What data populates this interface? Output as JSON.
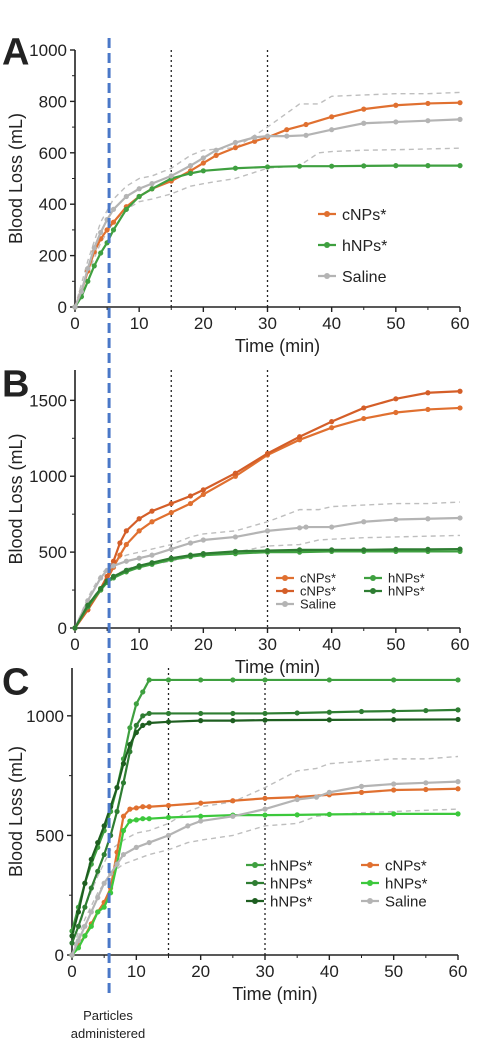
{
  "annotation": "Particles\nadministered",
  "colors": {
    "cnps": "#E07030",
    "cnps2": "#D45E28",
    "hnps": "#3FA040",
    "hnps_mid": "#2E7D32",
    "hnps_dark": "#1E5E20",
    "hnps_light": "#3CC83C",
    "saline": "#B4B4B4",
    "band": "#BEBEBE",
    "admin_line": "#4A78C8",
    "ref_line": "#222222"
  },
  "chart_data": [
    {
      "panel": "A",
      "type": "line",
      "xlabel": "Time (min)",
      "ylabel": "Blood Loss  (mL)",
      "xlim": [
        0,
        60
      ],
      "ylim": [
        0,
        1000
      ],
      "xticks": [
        0,
        10,
        20,
        30,
        40,
        50,
        60
      ],
      "yticks": [
        0,
        200,
        400,
        600,
        800,
        1000
      ],
      "ref_lines_x": [
        15,
        30
      ],
      "admin_x": 5,
      "legend_position": "right",
      "legend_layout": "one-column",
      "series": [
        {
          "name": "cNPs*",
          "color": "cnps",
          "x": [
            0,
            1,
            2,
            3,
            4,
            5,
            6,
            8,
            10,
            12,
            15,
            18,
            20,
            22,
            25,
            28,
            30,
            33,
            36,
            40,
            45,
            50,
            55,
            60
          ],
          "y": [
            0,
            60,
            140,
            215,
            265,
            300,
            330,
            390,
            430,
            460,
            490,
            530,
            560,
            590,
            620,
            645,
            660,
            690,
            710,
            740,
            770,
            785,
            792,
            795
          ]
        },
        {
          "name": "hNPs*",
          "color": "hnps",
          "x": [
            0,
            1,
            2,
            3,
            4,
            5,
            6,
            8,
            10,
            12,
            15,
            18,
            20,
            25,
            30,
            35,
            40,
            45,
            50,
            55,
            60
          ],
          "y": [
            0,
            40,
            100,
            160,
            210,
            250,
            300,
            380,
            430,
            460,
            500,
            520,
            530,
            540,
            545,
            548,
            548,
            549,
            550,
            550,
            550
          ]
        },
        {
          "name": "Saline",
          "color": "saline",
          "x": [
            0,
            1,
            2,
            3,
            4,
            5,
            6,
            8,
            10,
            12,
            15,
            18,
            20,
            22,
            25,
            28,
            30,
            33,
            36,
            40,
            45,
            50,
            55,
            60
          ],
          "y": [
            0,
            60,
            150,
            230,
            290,
            340,
            380,
            430,
            460,
            480,
            510,
            550,
            580,
            610,
            640,
            660,
            665,
            665,
            668,
            690,
            715,
            720,
            725,
            730
          ]
        }
      ],
      "bands": [
        {
          "x": [
            0,
            2,
            4,
            6,
            8,
            10,
            12,
            15,
            18,
            20,
            25,
            30,
            35,
            38,
            40,
            45,
            50,
            55,
            60
          ],
          "y": [
            0,
            180,
            330,
            420,
            470,
            500,
            510,
            540,
            590,
            610,
            620,
            700,
            790,
            790,
            820,
            825,
            830,
            830,
            835
          ]
        },
        {
          "x": [
            0,
            2,
            4,
            6,
            8,
            10,
            12,
            15,
            18,
            20,
            25,
            30,
            35,
            38,
            40,
            45,
            50,
            55,
            60
          ],
          "y": [
            0,
            130,
            250,
            330,
            380,
            410,
            420,
            440,
            470,
            480,
            500,
            540,
            550,
            600,
            605,
            610,
            612,
            615,
            618
          ]
        }
      ]
    },
    {
      "panel": "B",
      "type": "line",
      "xlabel": "Time (min)",
      "ylabel": "Blood Loss  (mL)",
      "xlim": [
        0,
        60
      ],
      "ylim": [
        0,
        1700
      ],
      "xticks": [
        0,
        10,
        20,
        30,
        40,
        50,
        60
      ],
      "yticks": [
        0,
        500,
        1000,
        1500
      ],
      "ref_lines_x": [
        15,
        30
      ],
      "admin_x": 5,
      "legend_position": "bottom-right",
      "legend_layout": "two-column",
      "series": [
        {
          "name": "cNPs*",
          "color": "cnps",
          "x": [
            0,
            2,
            4,
            5,
            6,
            7,
            8,
            10,
            12,
            15,
            18,
            20,
            25,
            30,
            35,
            40,
            45,
            50,
            55,
            60
          ],
          "y": [
            0,
            120,
            250,
            320,
            400,
            480,
            550,
            640,
            700,
            760,
            820,
            880,
            1000,
            1140,
            1240,
            1320,
            1380,
            1420,
            1440,
            1450
          ]
        },
        {
          "name": "cNPs*",
          "color": "cnps2",
          "x": [
            0,
            2,
            4,
            5,
            6,
            7,
            8,
            10,
            12,
            15,
            18,
            20,
            25,
            30,
            35,
            40,
            45,
            50,
            55,
            60
          ],
          "y": [
            0,
            120,
            260,
            340,
            440,
            560,
            640,
            720,
            770,
            820,
            870,
            910,
            1020,
            1150,
            1260,
            1360,
            1450,
            1510,
            1550,
            1560
          ]
        },
        {
          "name": "Saline",
          "color": "saline",
          "x": [
            0,
            2,
            4,
            5,
            6,
            8,
            10,
            12,
            15,
            18,
            20,
            25,
            30,
            35,
            36,
            40,
            45,
            50,
            55,
            60
          ],
          "y": [
            0,
            180,
            330,
            380,
            410,
            440,
            460,
            480,
            520,
            560,
            580,
            600,
            640,
            660,
            665,
            665,
            700,
            715,
            720,
            725
          ]
        },
        {
          "name": "hNPs*",
          "color": "hnps",
          "x": [
            0,
            2,
            4,
            5,
            6,
            8,
            10,
            12,
            15,
            18,
            20,
            25,
            30,
            35,
            40,
            45,
            50,
            55,
            60
          ],
          "y": [
            0,
            140,
            250,
            300,
            330,
            370,
            400,
            420,
            450,
            470,
            480,
            490,
            500,
            500,
            505,
            505,
            505,
            505,
            505
          ]
        },
        {
          "name": "hNPs*",
          "color": "hnps_mid",
          "x": [
            0,
            2,
            4,
            5,
            6,
            8,
            10,
            12,
            15,
            18,
            20,
            25,
            30,
            35,
            40,
            45,
            50,
            55,
            60
          ],
          "y": [
            0,
            150,
            260,
            310,
            340,
            380,
            410,
            430,
            460,
            480,
            490,
            505,
            510,
            515,
            515,
            515,
            518,
            518,
            520
          ]
        }
      ],
      "bands": [
        {
          "x": [
            0,
            2,
            4,
            6,
            8,
            10,
            12,
            15,
            18,
            20,
            25,
            30,
            35,
            38,
            40,
            45,
            50,
            55,
            60
          ],
          "y": [
            0,
            200,
            350,
            440,
            480,
            500,
            520,
            550,
            600,
            620,
            640,
            700,
            780,
            780,
            800,
            810,
            820,
            820,
            830
          ]
        },
        {
          "x": [
            0,
            2,
            4,
            6,
            8,
            10,
            12,
            15,
            18,
            20,
            25,
            30,
            35,
            38,
            40,
            45,
            50,
            55,
            60
          ],
          "y": [
            0,
            150,
            270,
            340,
            390,
            410,
            420,
            440,
            470,
            480,
            500,
            540,
            550,
            580,
            585,
            595,
            600,
            605,
            610
          ]
        }
      ]
    },
    {
      "panel": "C",
      "type": "line",
      "xlabel": "Time (min)",
      "ylabel": "Blood Loss  (mL)",
      "xlim": [
        0,
        60
      ],
      "ylim": [
        0,
        1200
      ],
      "xticks": [
        0,
        10,
        20,
        30,
        40,
        50,
        60
      ],
      "yticks": [
        0,
        500,
        1000
      ],
      "ref_lines_x": [
        15,
        30
      ],
      "admin_x": 5,
      "legend_position": "bottom-right",
      "legend_layout": "two-column",
      "series": [
        {
          "name": "hNPs*",
          "color": "hnps",
          "x": [
            0,
            1,
            2,
            3,
            4,
            5,
            6,
            7,
            8,
            9,
            10,
            11,
            12,
            15,
            20,
            25,
            30,
            40,
            50,
            60
          ],
          "y": [
            100,
            200,
            300,
            380,
            450,
            520,
            600,
            700,
            820,
            950,
            1050,
            1100,
            1150,
            1150,
            1150,
            1150,
            1150,
            1150,
            1150,
            1150
          ]
        },
        {
          "name": "hNPs*",
          "color": "hnps_mid",
          "x": [
            0,
            1,
            2,
            3,
            4,
            5,
            6,
            7,
            8,
            9,
            10,
            11,
            12,
            15,
            20,
            25,
            30,
            35,
            40,
            45,
            50,
            55,
            60
          ],
          "y": [
            50,
            120,
            200,
            280,
            350,
            420,
            500,
            600,
            720,
            850,
            960,
            1000,
            1010,
            1010,
            1010,
            1010,
            1010,
            1012,
            1015,
            1018,
            1020,
            1022,
            1025
          ]
        },
        {
          "name": "hNPs*",
          "color": "hnps_dark",
          "x": [
            0,
            1,
            2,
            3,
            4,
            5,
            6,
            7,
            8,
            9,
            10,
            11,
            12,
            15,
            20,
            25,
            30,
            40,
            50,
            60
          ],
          "y": [
            80,
            180,
            300,
            400,
            470,
            540,
            620,
            700,
            800,
            880,
            930,
            960,
            970,
            975,
            980,
            980,
            982,
            983,
            984,
            985
          ]
        },
        {
          "name": "cNPs*",
          "color": "cnps",
          "x": [
            0,
            1,
            2,
            3,
            4,
            5,
            6,
            7,
            8,
            9,
            10,
            11,
            12,
            15,
            20,
            25,
            30,
            35,
            40,
            45,
            50,
            55,
            60
          ],
          "y": [
            0,
            40,
            80,
            130,
            180,
            220,
            280,
            430,
            580,
            610,
            615,
            620,
            620,
            625,
            635,
            645,
            655,
            660,
            670,
            680,
            690,
            692,
            695
          ]
        },
        {
          "name": "hNPs*",
          "color": "hnps_light",
          "x": [
            0,
            1,
            2,
            3,
            4,
            5,
            6,
            7,
            8,
            9,
            10,
            11,
            12,
            15,
            20,
            25,
            30,
            35,
            40,
            50,
            60
          ],
          "y": [
            0,
            30,
            80,
            120,
            180,
            200,
            260,
            380,
            520,
            560,
            565,
            570,
            570,
            575,
            580,
            585,
            585,
            586,
            588,
            590,
            590
          ]
        },
        {
          "name": "Saline",
          "color": "saline",
          "x": [
            0,
            1,
            2,
            3,
            4,
            5,
            6,
            7,
            8,
            10,
            12,
            15,
            18,
            20,
            25,
            30,
            35,
            38,
            40,
            45,
            50,
            55,
            60
          ],
          "y": [
            0,
            60,
            120,
            180,
            240,
            300,
            340,
            380,
            420,
            450,
            470,
            500,
            540,
            560,
            580,
            610,
            650,
            660,
            680,
            705,
            715,
            720,
            725
          ]
        }
      ],
      "bands": [
        {
          "x": [
            0,
            2,
            4,
            6,
            8,
            10,
            12,
            15,
            18,
            20,
            25,
            30,
            35,
            38,
            40,
            45,
            50,
            55,
            60
          ],
          "y": [
            0,
            200,
            330,
            440,
            480,
            510,
            520,
            550,
            600,
            620,
            640,
            700,
            770,
            780,
            800,
            810,
            820,
            820,
            830
          ]
        },
        {
          "x": [
            0,
            2,
            4,
            6,
            8,
            10,
            12,
            15,
            18,
            20,
            25,
            30,
            35,
            38,
            40,
            45,
            50,
            55,
            60
          ],
          "y": [
            0,
            150,
            260,
            340,
            380,
            400,
            420,
            440,
            470,
            480,
            500,
            540,
            550,
            580,
            585,
            595,
            600,
            605,
            610
          ]
        }
      ]
    }
  ]
}
